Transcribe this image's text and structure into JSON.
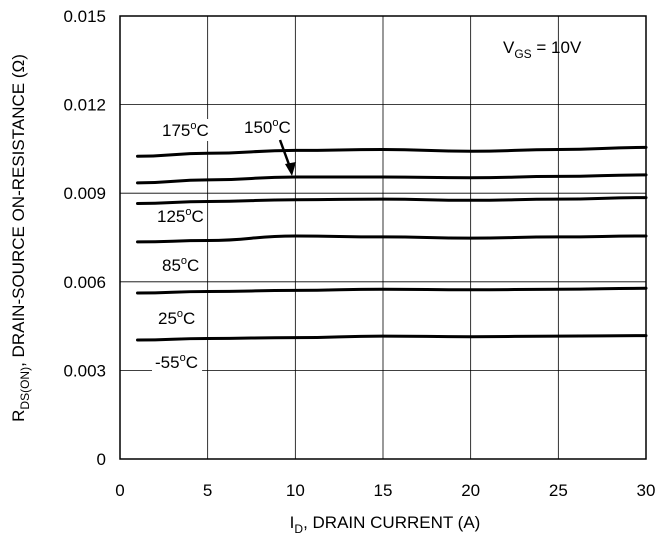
{
  "chart_data": {
    "type": "line",
    "title": "",
    "xlabel": {
      "main": "I",
      "sub": "D",
      "rest": ", DRAIN CURRENT (A)"
    },
    "ylabel": {
      "main": "R",
      "sub": "DS(ON)",
      "rest": ", DRAIN-SOURCE ON-RESISTANCE (Ω)"
    },
    "xlim": [
      0,
      30
    ],
    "ylim": [
      0,
      0.015
    ],
    "x_ticks": [
      "0",
      "5",
      "10",
      "15",
      "20",
      "25",
      "30"
    ],
    "y_ticks": [
      "0",
      "0.003",
      "0.006",
      "0.009",
      "0.012",
      "0.015"
    ],
    "grid": true,
    "condition": {
      "main": "V",
      "sub": "GS",
      "rest": " = 10V"
    },
    "series": [
      {
        "name": "-55°C",
        "label_main": "-55",
        "label_sup": "o",
        "label_rest": "C",
        "x": [
          1,
          5,
          10,
          15,
          20,
          25,
          30
        ],
        "y": [
          0.00403,
          0.00408,
          0.00411,
          0.00416,
          0.00414,
          0.00416,
          0.00418
        ]
      },
      {
        "name": "25°C",
        "label_main": "25",
        "label_sup": "o",
        "label_rest": "C",
        "x": [
          1,
          5,
          10,
          15,
          20,
          25,
          30
        ],
        "y": [
          0.00562,
          0.00567,
          0.00571,
          0.00575,
          0.00573,
          0.00575,
          0.00578
        ]
      },
      {
        "name": "85°C",
        "label_main": "85",
        "label_sup": "o",
        "label_rest": "C",
        "x": [
          1,
          5,
          10,
          15,
          20,
          25,
          30
        ],
        "y": [
          0.00735,
          0.0074,
          0.00755,
          0.00752,
          0.00748,
          0.00752,
          0.00755
        ]
      },
      {
        "name": "125°C",
        "label_main": "125",
        "label_sup": "o",
        "label_rest": "C",
        "x": [
          1,
          5,
          10,
          15,
          20,
          25,
          30
        ],
        "y": [
          0.00865,
          0.00872,
          0.00878,
          0.0088,
          0.00876,
          0.0088,
          0.00885
        ]
      },
      {
        "name": "150°C",
        "label_main": "150",
        "label_sup": "o",
        "label_rest": "C",
        "x": [
          1,
          5,
          10,
          15,
          20,
          25,
          30
        ],
        "y": [
          0.00935,
          0.00945,
          0.00955,
          0.00955,
          0.00952,
          0.00957,
          0.00962
        ]
      },
      {
        "name": "175°C",
        "label_main": "175",
        "label_sup": "o",
        "label_rest": "C",
        "x": [
          1,
          5,
          10,
          15,
          20,
          25,
          30
        ],
        "y": [
          0.01025,
          0.01035,
          0.01045,
          0.01048,
          0.01042,
          0.01048,
          0.01055
        ]
      }
    ]
  }
}
